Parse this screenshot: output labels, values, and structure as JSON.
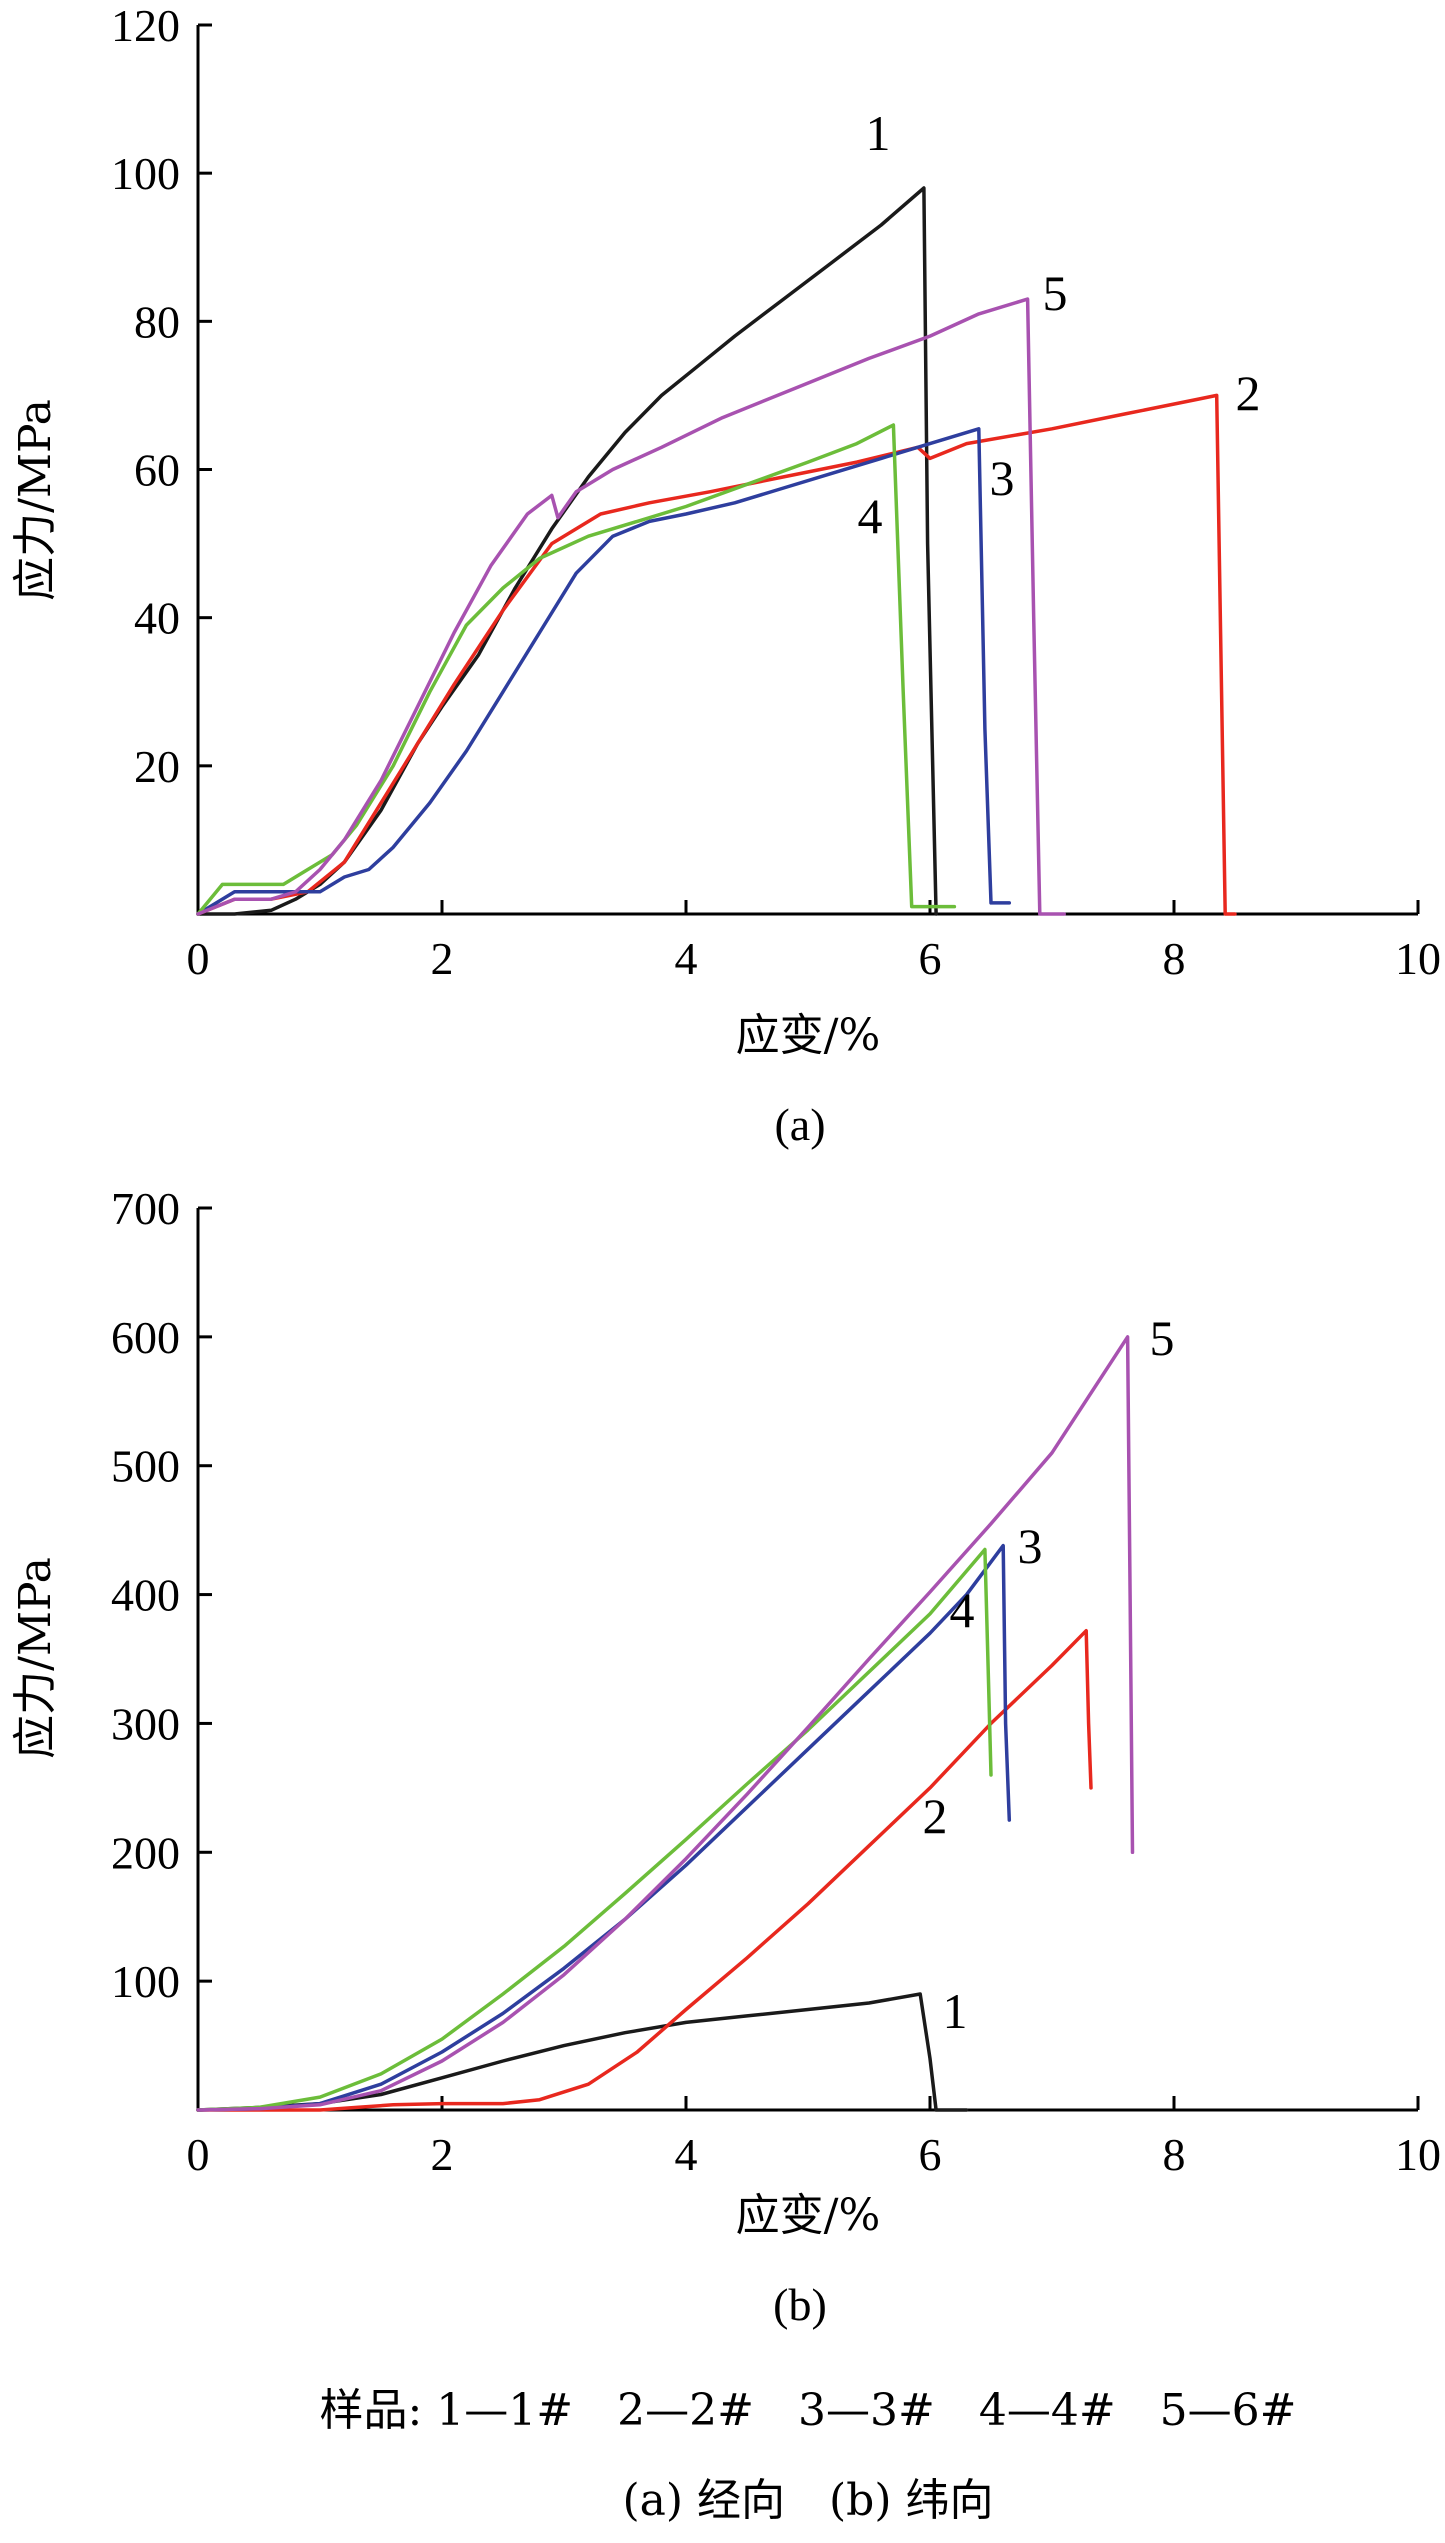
{
  "chart_data": [
    {
      "type": "line",
      "panel_label": "(a)",
      "xlabel": "应变/%",
      "ylabel": "应力/MPa",
      "xlim": [
        0,
        10
      ],
      "ylim": [
        0,
        120
      ],
      "x_ticks": [
        0,
        2,
        4,
        6,
        8,
        10
      ],
      "y_ticks": [
        20,
        40,
        60,
        80,
        100,
        120
      ],
      "series": [
        {
          "name": "1",
          "color": "#1a1a1a",
          "x": [
            0,
            0.3,
            0.6,
            0.8,
            1.0,
            1.2,
            1.5,
            1.8,
            2.0,
            2.3,
            2.6,
            2.9,
            3.2,
            3.5,
            3.8,
            4.1,
            4.4,
            4.8,
            5.2,
            5.6,
            5.95,
            5.98,
            6.05
          ],
          "y": [
            0,
            0,
            0.5,
            2,
            4,
            7,
            14,
            23,
            28,
            35,
            44,
            52,
            59,
            65,
            70,
            74,
            78,
            83,
            88,
            93,
            98,
            50,
            0
          ]
        },
        {
          "name": "2",
          "color": "#e8281e",
          "x": [
            0,
            0.3,
            0.6,
            0.9,
            1.2,
            1.5,
            1.8,
            2.1,
            2.5,
            2.9,
            3.3,
            3.7,
            4.2,
            4.8,
            5.4,
            5.9,
            6.0,
            6.3,
            7.0,
            7.6,
            8.2,
            8.35,
            8.42,
            8.5
          ],
          "y": [
            0,
            2,
            2,
            3,
            7,
            15,
            23,
            31,
            41,
            50,
            54,
            55.5,
            57,
            59,
            61,
            63,
            61.5,
            63.5,
            65.5,
            67.5,
            69.5,
            70,
            0,
            0
          ]
        },
        {
          "name": "3",
          "color": "#2e3e9e",
          "x": [
            0,
            0.3,
            0.7,
            1.0,
            1.2,
            1.4,
            1.6,
            1.9,
            2.2,
            2.5,
            2.8,
            3.1,
            3.4,
            3.7,
            4.0,
            4.4,
            4.8,
            5.2,
            5.6,
            6.0,
            6.4,
            6.45,
            6.5,
            6.65
          ],
          "y": [
            0,
            3,
            3,
            3,
            5,
            6,
            9,
            15,
            22,
            30,
            38,
            46,
            51,
            53,
            54,
            55.5,
            57.5,
            59.5,
            61.5,
            63.5,
            65.5,
            25,
            1.5,
            1.5
          ]
        },
        {
          "name": "4",
          "color": "#6cbd3a",
          "x": [
            0,
            0.2,
            0.4,
            0.7,
            0.9,
            1.1,
            1.3,
            1.6,
            1.9,
            2.2,
            2.5,
            2.8,
            3.2,
            3.6,
            4.0,
            4.5,
            5.0,
            5.4,
            5.7,
            5.78,
            5.85,
            6.2
          ],
          "y": [
            0,
            4,
            4,
            4,
            6,
            8,
            12,
            20,
            30,
            39,
            44,
            48,
            51,
            53,
            55,
            58,
            61,
            63.5,
            66,
            30,
            1,
            1
          ]
        },
        {
          "name": "5",
          "color": "#a852b0",
          "x": [
            0,
            0.3,
            0.6,
            0.8,
            1.0,
            1.2,
            1.5,
            1.8,
            2.1,
            2.4,
            2.7,
            2.9,
            2.95,
            3.1,
            3.4,
            3.8,
            4.3,
            4.9,
            5.5,
            6.0,
            6.4,
            6.8,
            6.85,
            6.9,
            7.1
          ],
          "y": [
            0,
            2,
            2,
            3,
            6,
            10,
            18,
            28,
            38,
            47,
            54,
            56.5,
            53.5,
            57,
            60,
            63,
            67,
            71,
            75,
            78,
            81,
            83,
            40,
            0,
            0
          ]
        }
      ],
      "point_labels": [
        "1",
        "2",
        "3",
        "4",
        "5"
      ]
    },
    {
      "type": "line",
      "panel_label": "(b)",
      "xlabel": "应变/%",
      "ylabel": "应力/MPa",
      "xlim": [
        0,
        10
      ],
      "ylim": [
        0,
        700
      ],
      "x_ticks": [
        0,
        2,
        4,
        6,
        8,
        10
      ],
      "y_ticks": [
        100,
        200,
        300,
        400,
        500,
        600,
        700
      ],
      "series": [
        {
          "name": "1",
          "color": "#1a1a1a",
          "x": [
            0,
            0.5,
            1.0,
            1.5,
            2.0,
            2.5,
            3.0,
            3.5,
            4.0,
            4.5,
            5.0,
            5.5,
            5.92,
            6.0,
            6.05,
            6.3
          ],
          "y": [
            0,
            2,
            5,
            12,
            25,
            38,
            50,
            60,
            68,
            73,
            78,
            83,
            90,
            40,
            0,
            0
          ]
        },
        {
          "name": "2",
          "color": "#e8281e",
          "x": [
            0,
            0.5,
            1.0,
            1.3,
            1.6,
            2.0,
            2.5,
            2.8,
            3.2,
            3.6,
            4.0,
            4.5,
            5.0,
            5.5,
            6.0,
            6.5,
            7.0,
            7.28,
            7.3,
            7.32
          ],
          "y": [
            0,
            0,
            0,
            2,
            4,
            5,
            5,
            8,
            20,
            45,
            78,
            118,
            160,
            205,
            250,
            300,
            345,
            372,
            300,
            250
          ]
        },
        {
          "name": "3",
          "color": "#2e3e9e",
          "x": [
            0,
            0.5,
            1.0,
            1.5,
            2.0,
            2.5,
            3.0,
            3.5,
            4.0,
            4.5,
            5.0,
            5.5,
            6.0,
            6.3,
            6.6,
            6.62,
            6.65
          ],
          "y": [
            0,
            1,
            5,
            20,
            45,
            75,
            110,
            148,
            190,
            235,
            280,
            325,
            370,
            400,
            438,
            300,
            225
          ]
        },
        {
          "name": "4",
          "color": "#6cbd3a",
          "x": [
            0,
            0.5,
            1.0,
            1.5,
            2.0,
            2.5,
            3.0,
            3.5,
            4.0,
            4.5,
            5.0,
            5.5,
            6.0,
            6.45,
            6.48,
            6.5
          ],
          "y": [
            0,
            2,
            10,
            28,
            55,
            90,
            127,
            168,
            210,
            253,
            295,
            340,
            385,
            435,
            330,
            260
          ]
        },
        {
          "name": "5",
          "color": "#a852b0",
          "x": [
            0,
            0.5,
            1.0,
            1.5,
            2.0,
            2.5,
            3.0,
            3.5,
            4.0,
            4.5,
            5.0,
            5.5,
            6.0,
            6.5,
            7.0,
            7.62,
            7.64,
            7.66
          ],
          "y": [
            0,
            1,
            4,
            15,
            38,
            68,
            105,
            148,
            195,
            245,
            297,
            350,
            402,
            455,
            510,
            600,
            400,
            200
          ]
        }
      ],
      "point_labels": [
        "1",
        "2",
        "3",
        "4",
        "5"
      ]
    }
  ],
  "legend": {
    "samples_text": "样品: 1—1#　2—2#　3—3#　4—4#　5—6#",
    "panels_text": "(a) 经向　(b) 纬向"
  }
}
